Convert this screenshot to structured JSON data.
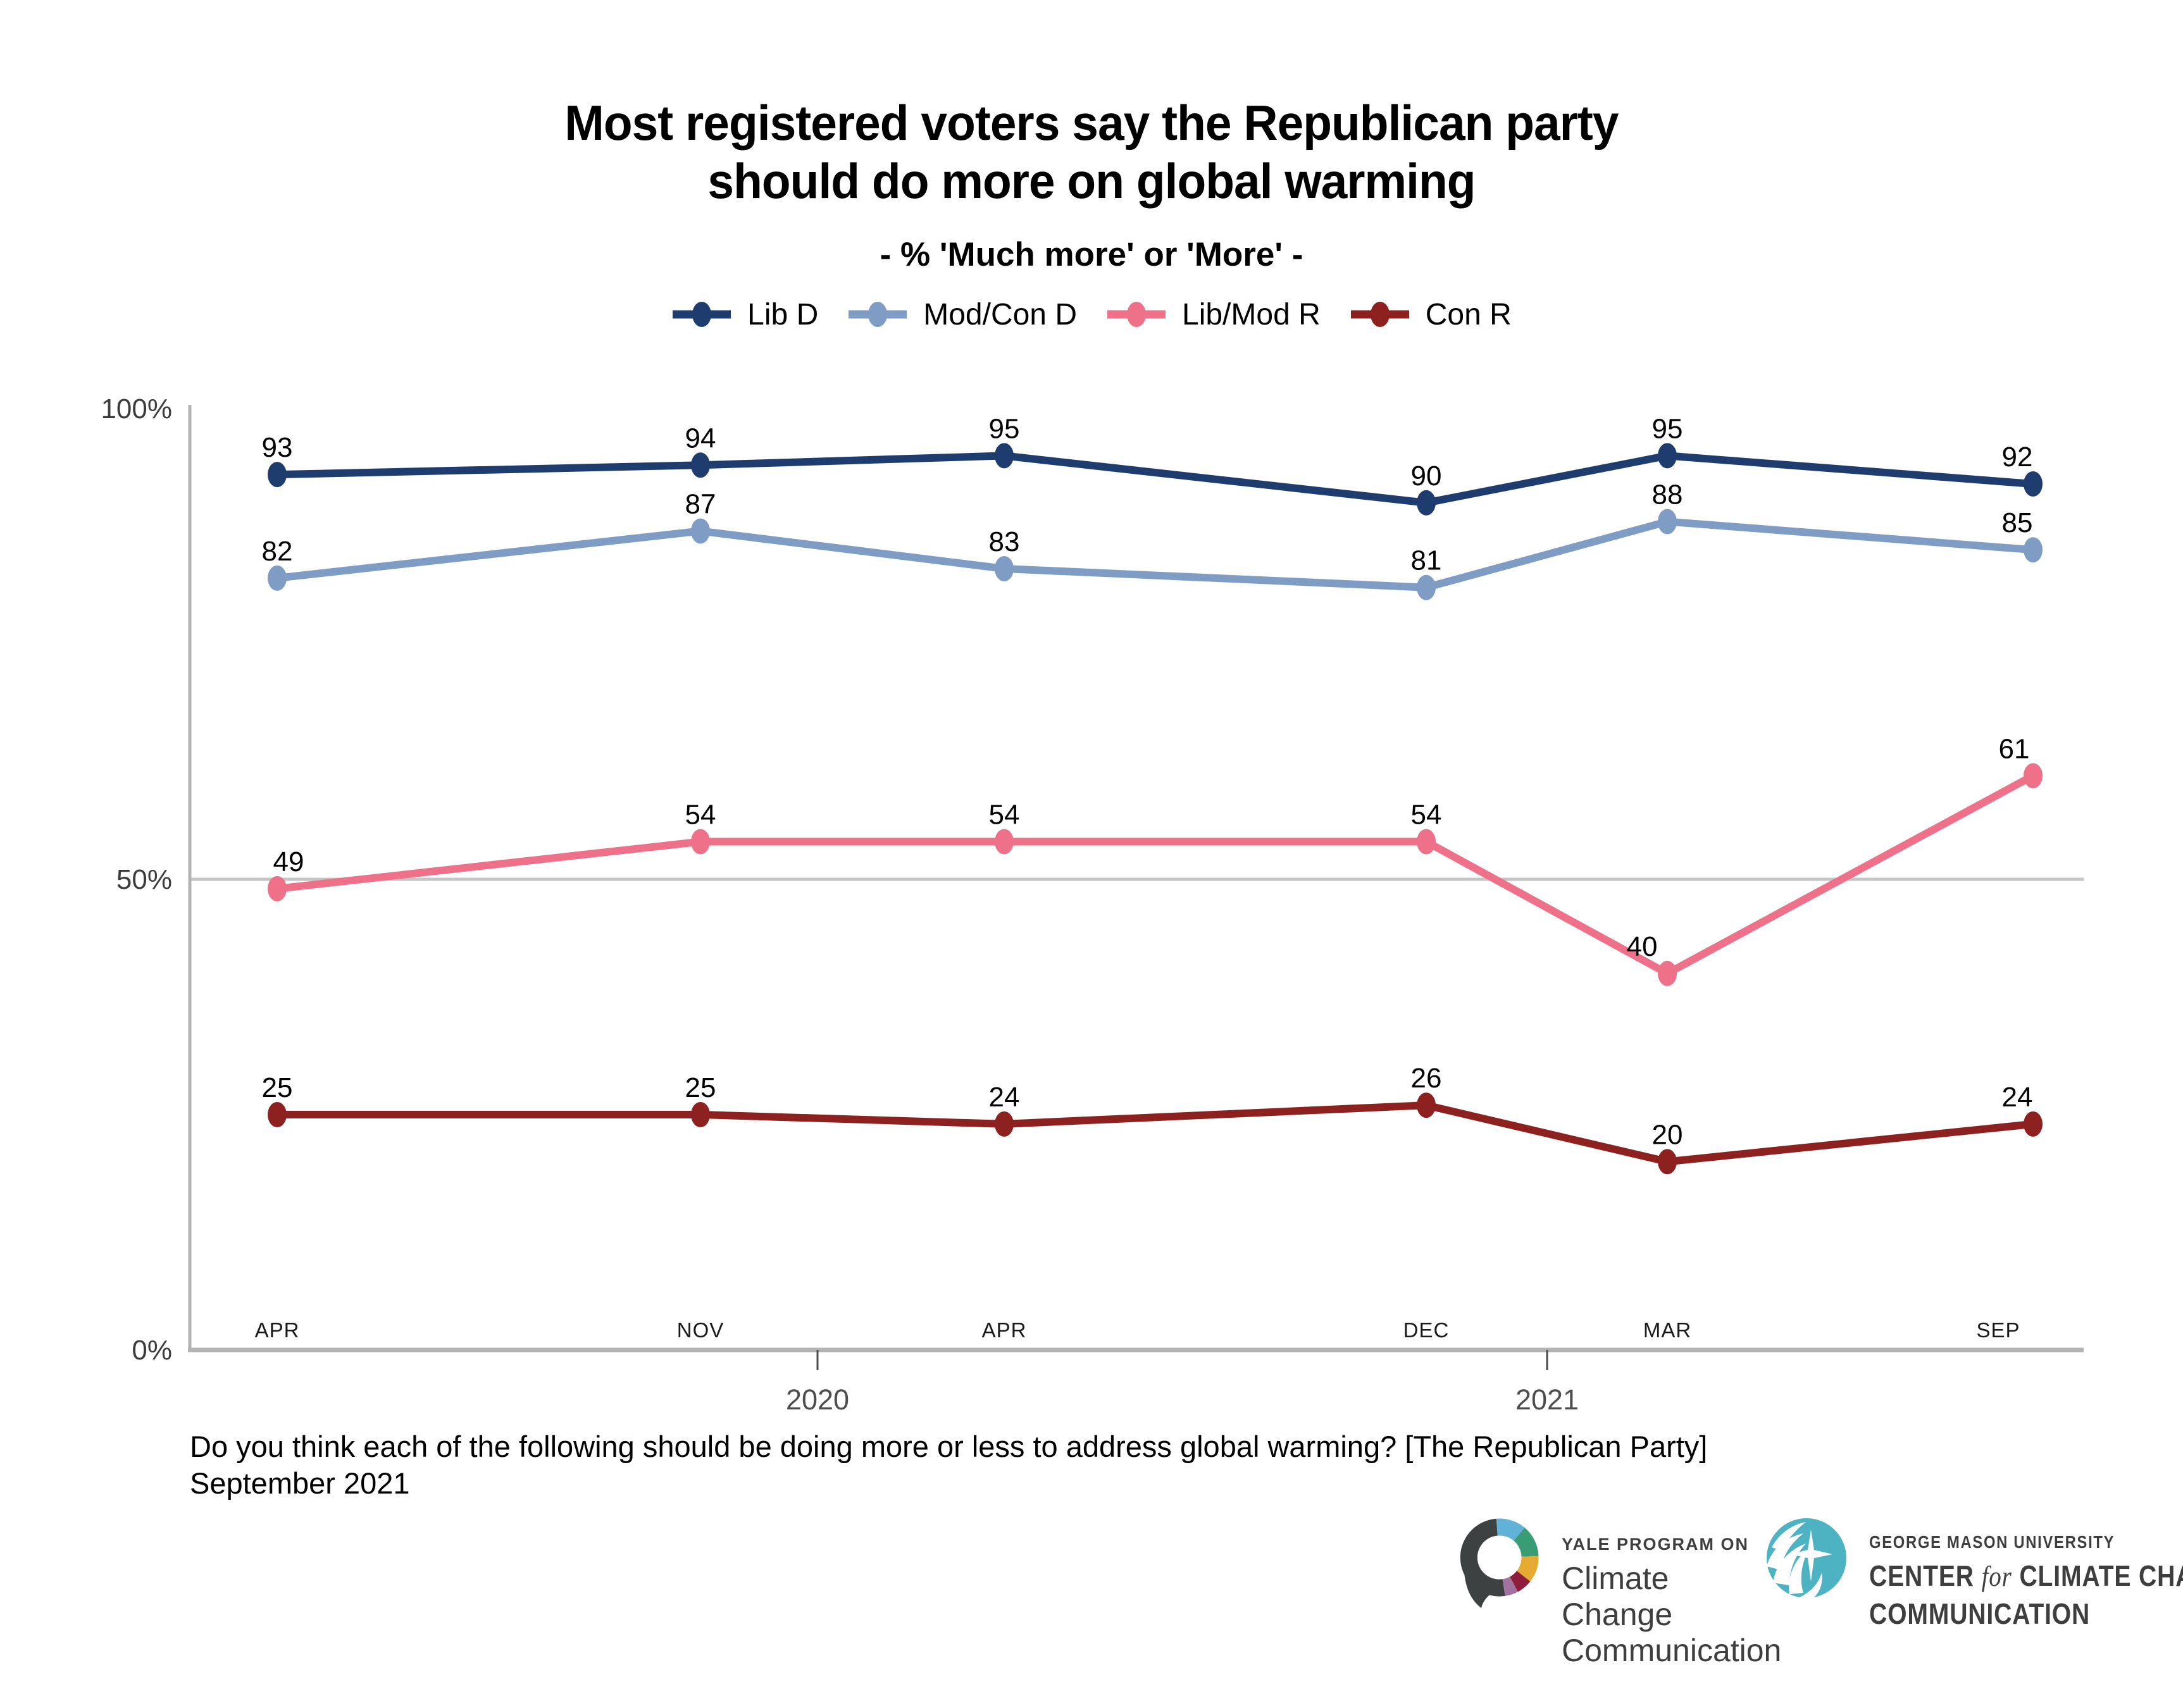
{
  "title": {
    "line1": "Most registered voters say the Republican party",
    "line2": "should do more on global warming",
    "subtitle": "- % 'Much more' or 'More' -"
  },
  "chart_data": {
    "type": "line",
    "categories": [
      "APR",
      "NOV",
      "APR",
      "DEC",
      "MAR",
      "SEP"
    ],
    "year_labels": [
      "2020",
      "2021"
    ],
    "series": [
      {
        "name": "Lib D",
        "color": "#1e3c6e",
        "values": [
          93,
          94,
          95,
          90,
          95,
          92
        ]
      },
      {
        "name": "Mod/Con D",
        "color": "#7e9cc4",
        "values": [
          82,
          87,
          83,
          81,
          88,
          85
        ]
      },
      {
        "name": "Lib/Mod R",
        "color": "#ee7089",
        "values": [
          49,
          54,
          54,
          54,
          40,
          61
        ]
      },
      {
        "name": "Con R",
        "color": "#8d2120",
        "values": [
          25,
          25,
          24,
          26,
          20,
          24
        ]
      }
    ],
    "title": "Most registered voters say the Republican party should do more on global warming",
    "subtitle": "- % 'Much more' or 'More' -",
    "xlabel": "",
    "ylabel": "",
    "ylim": [
      0,
      100
    ],
    "y_tick_labels": [
      "100%",
      "50%",
      "0%"
    ],
    "y_tick_values": [
      100,
      50,
      0
    ],
    "gridline_at": 50,
    "legend_position": "top",
    "grid": "single horizontal gridline at 50%"
  },
  "legend": {
    "items": [
      {
        "label": "Lib D",
        "color": "#1e3c6e"
      },
      {
        "label": "Mod/Con D",
        "color": "#7e9cc4"
      },
      {
        "label": "Lib/Mod R",
        "color": "#ee7089"
      },
      {
        "label": "Con R",
        "color": "#8d2120"
      }
    ]
  },
  "footer": {
    "question": "Do you think each of the following should be doing more or less to address global warming? [The Republican Party]",
    "date": "September 2021"
  },
  "logos": {
    "yale": {
      "line1": "YALE PROGRAM ON",
      "line2": "Climate Change",
      "line3": "Communication"
    },
    "gmu": {
      "line1": "GEORGE MASON UNIVERSITY",
      "line2_pre": "CENTER ",
      "line2_for": "for",
      "line2_post": " CLIMATE CHANGE",
      "line3": "COMMUNICATION"
    }
  },
  "colors": {
    "axis": "#b3b3b3",
    "gridline": "#c5c5c5",
    "y_tick_label": "#3c3c3c",
    "month_label": "#1a1a1a",
    "year_label": "#4d4d4d",
    "value_label": "#000000"
  }
}
